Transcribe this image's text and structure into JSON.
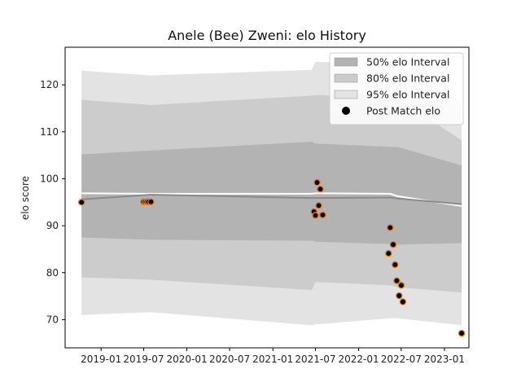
{
  "chart_data": {
    "type": "line",
    "title": "Anele (Bee) Zweni: elo History",
    "xlabel": "",
    "ylabel": "elo score",
    "x_axis_type": "date",
    "xlim": [
      "2018-08-01",
      "2023-04-15"
    ],
    "ylim": [
      64,
      128
    ],
    "x_ticks": [
      "2019-01",
      "2019-07",
      "2020-01",
      "2020-07",
      "2021-01",
      "2021-07",
      "2022-01",
      "2022-07",
      "2023-01"
    ],
    "y_ticks": [
      70,
      80,
      90,
      100,
      110,
      120
    ],
    "grid": false,
    "legend_position": "top-right",
    "legend": [
      {
        "label": "50% elo Interval",
        "color": "#b3b3b3",
        "kind": "band"
      },
      {
        "label": "80% elo Interval",
        "color": "#cccccc",
        "kind": "band"
      },
      {
        "label": "95% elo Interval",
        "color": "#e3e3e3",
        "kind": "band"
      },
      {
        "label": "Post Match elo",
        "color": "#000000",
        "kind": "marker"
      }
    ],
    "bands": {
      "x": [
        "2018-10-10",
        "2019-08-01",
        "2021-06-15",
        "2021-07-01",
        "2022-05-15",
        "2022-06-15",
        "2023-03-15"
      ],
      "median": [
        95.6,
        96.6,
        95.9,
        95.9,
        96.0,
        95.8,
        94.6
      ],
      "mean_line": [
        96.9,
        96.8,
        96.8,
        96.9,
        96.8,
        96.3,
        94.2
      ],
      "p50": [
        [
          87.5,
          105.2
        ],
        [
          87.0,
          106.0
        ],
        [
          86.8,
          107.9
        ],
        [
          86.6,
          107.5
        ],
        [
          86.1,
          106.8
        ],
        [
          86.0,
          106.8
        ],
        [
          86.3,
          102.8
        ]
      ],
      "p80": [
        [
          79.0,
          116.8
        ],
        [
          78.5,
          115.7
        ],
        [
          76.3,
          117.7
        ],
        [
          78.0,
          117.8
        ],
        [
          77.3,
          117.5
        ],
        [
          76.9,
          117.2
        ],
        [
          75.8,
          108.2
        ]
      ],
      "p95": [
        [
          71.0,
          123.0
        ],
        [
          71.6,
          122.0
        ],
        [
          68.8,
          123.2
        ],
        [
          69.0,
          124.9
        ],
        [
          70.3,
          124.5
        ],
        [
          70.3,
          124.5
        ],
        [
          68.8,
          116.2
        ]
      ]
    },
    "point_color": "#000000",
    "point_edge_color": "#e07b20",
    "points": [
      {
        "x": "2018-10-10",
        "y": 95.0
      },
      {
        "x": "2019-07-01",
        "y": 95.1
      },
      {
        "x": "2019-07-08",
        "y": 95.1
      },
      {
        "x": "2019-07-15",
        "y": 95.1
      },
      {
        "x": "2019-07-22",
        "y": 95.1
      },
      {
        "x": "2019-08-01",
        "y": 95.1
      },
      {
        "x": "2021-06-25",
        "y": 93.0
      },
      {
        "x": "2021-07-01",
        "y": 92.2
      },
      {
        "x": "2021-07-08",
        "y": 99.2
      },
      {
        "x": "2021-07-15",
        "y": 94.3
      },
      {
        "x": "2021-07-22",
        "y": 97.8
      },
      {
        "x": "2021-08-01",
        "y": 92.3
      },
      {
        "x": "2022-05-08",
        "y": 84.1
      },
      {
        "x": "2022-05-15",
        "y": 89.6
      },
      {
        "x": "2022-05-28",
        "y": 86.0
      },
      {
        "x": "2022-06-05",
        "y": 81.7
      },
      {
        "x": "2022-06-12",
        "y": 78.3
      },
      {
        "x": "2022-06-22",
        "y": 75.1
      },
      {
        "x": "2022-07-01",
        "y": 77.3
      },
      {
        "x": "2022-07-08",
        "y": 73.8
      },
      {
        "x": "2023-03-15",
        "y": 67.1
      }
    ]
  }
}
